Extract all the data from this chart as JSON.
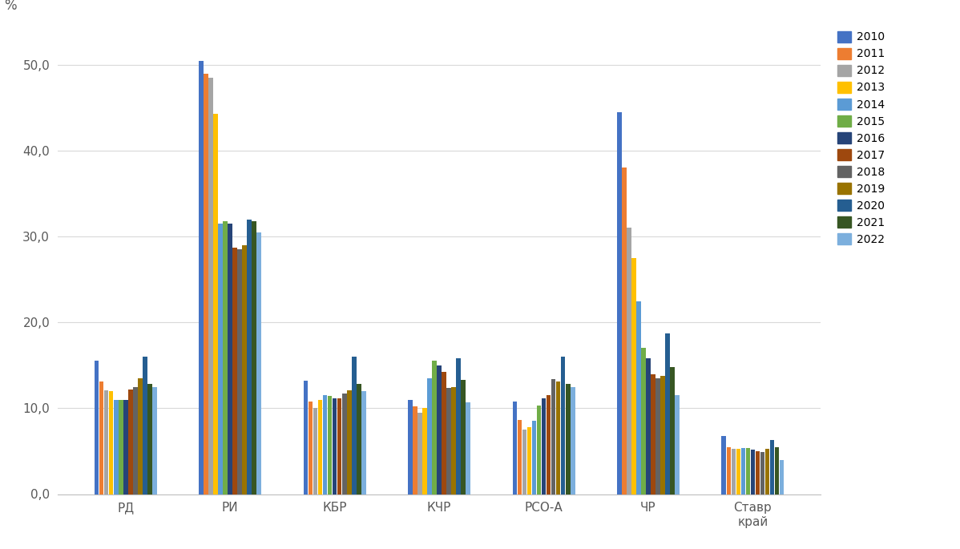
{
  "categories": [
    "РД",
    "РИ",
    "КБР",
    "КЧР",
    "РСО-А",
    "ЧР",
    "Ставр\nкрай"
  ],
  "years": [
    "2010",
    "2011",
    "2012",
    "2013",
    "2014",
    "2015",
    "2016",
    "2017",
    "2018",
    "2019",
    "2020",
    "2021",
    "2022"
  ],
  "colors": [
    "#4472C4",
    "#ED7D31",
    "#A5A5A5",
    "#FFC000",
    "#5B9BD5",
    "#70AD47",
    "#264478",
    "#9E480E",
    "#636363",
    "#997300",
    "#255E91",
    "#375623",
    "#7CAFDD"
  ],
  "values": {
    "РД": [
      15.5,
      13.1,
      12.1,
      12.0,
      11.0,
      11.0,
      11.0,
      12.2,
      12.5,
      13.5,
      16.0,
      12.8,
      12.5
    ],
    "РИ": [
      50.5,
      49.0,
      48.5,
      44.3,
      31.5,
      31.8,
      31.5,
      28.7,
      28.5,
      29.0,
      32.0,
      31.8,
      30.5
    ],
    "КБР": [
      13.2,
      10.8,
      10.0,
      11.0,
      11.5,
      11.4,
      11.2,
      11.2,
      11.7,
      12.1,
      16.0,
      12.8,
      12.0
    ],
    "КЧР": [
      11.0,
      10.2,
      9.5,
      10.0,
      13.5,
      15.5,
      15.0,
      14.2,
      12.4,
      12.5,
      15.8,
      13.3,
      10.7
    ],
    "РСО-А": [
      10.8,
      8.6,
      7.5,
      7.8,
      8.5,
      10.3,
      11.2,
      11.5,
      13.4,
      13.1,
      16.0,
      12.8,
      12.5
    ],
    "ЧР": [
      44.5,
      38.0,
      31.0,
      27.5,
      22.5,
      17.0,
      15.8,
      14.0,
      13.5,
      13.8,
      18.7,
      14.8,
      11.5
    ],
    "Ставр\nкрай": [
      6.8,
      5.5,
      5.3,
      5.3,
      5.4,
      5.4,
      5.2,
      5.0,
      4.9,
      5.3,
      6.3,
      5.5,
      4.0
    ]
  },
  "percent_label": "%",
  "ylim": [
    0,
    55
  ],
  "yticks": [
    0.0,
    10.0,
    20.0,
    30.0,
    40.0,
    50.0
  ],
  "ytick_labels": [
    "0,0",
    "10,0",
    "20,0",
    "30,0",
    "40,0",
    "50,0"
  ],
  "background_color": "#FFFFFF",
  "grid_color": "#D9D9D9"
}
